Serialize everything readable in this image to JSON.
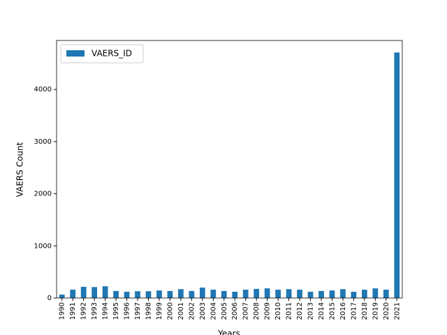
{
  "chart_data": {
    "type": "bar",
    "x_label": "Years",
    "y_label": "VAERS Count",
    "categories": [
      "1990",
      "1991",
      "1992",
      "1993",
      "1994",
      "1995",
      "1996",
      "1997",
      "1998",
      "1999",
      "2000",
      "2001",
      "2002",
      "2003",
      "2004",
      "2005",
      "2006",
      "2007",
      "2008",
      "2009",
      "2010",
      "2011",
      "2012",
      "2013",
      "2014",
      "2015",
      "2016",
      "2017",
      "2018",
      "2019",
      "2020",
      "2021"
    ],
    "series": [
      {
        "name": "VAERS_ID",
        "color": "#1f77b4",
        "values": [
          65,
          160,
          215,
          210,
          225,
          135,
          120,
          130,
          130,
          145,
          135,
          170,
          135,
          200,
          160,
          135,
          120,
          160,
          175,
          185,
          160,
          170,
          160,
          120,
          135,
          145,
          170,
          120,
          160,
          185,
          160,
          4710
        ]
      }
    ],
    "ylim": [
      0,
      4940
    ],
    "yticks": [
      0,
      1000,
      2000,
      3000,
      4000
    ],
    "legend": "upper left",
    "grid": false
  }
}
